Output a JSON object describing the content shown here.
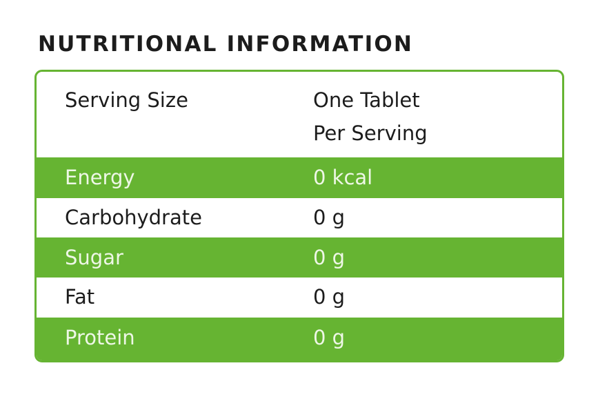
{
  "title": "NUTRITIONAL INFORMATION",
  "colors": {
    "accent": "#66b432",
    "text": "#1c1c1c"
  },
  "serving": {
    "label": "Serving Size",
    "value": "One Tablet",
    "subvalue": "Per Serving"
  },
  "rows": [
    {
      "label": "Energy",
      "value": "0 kcal"
    },
    {
      "label": "Carbohydrate",
      "value": "0 g"
    },
    {
      "label": "Sugar",
      "value": "0 g"
    },
    {
      "label": "Fat",
      "value": "0 g"
    },
    {
      "label": "Protein",
      "value": "0 g"
    }
  ]
}
